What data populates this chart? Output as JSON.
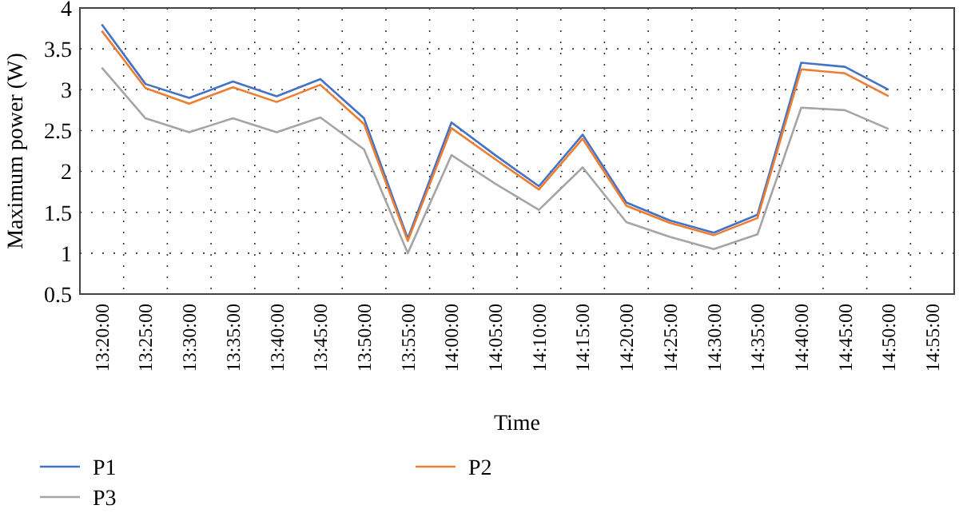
{
  "chart_data": {
    "type": "line",
    "xlabel": "Time",
    "ylabel": "Maximum power (W)",
    "categories": [
      "13:20:00",
      "13:25:00",
      "13:30:00",
      "13:35:00",
      "13:40:00",
      "13:45:00",
      "13:50:00",
      "13:55:00",
      "14:00:00",
      "14:05:00",
      "14:10:00",
      "14:15:00",
      "14:20:00",
      "14:25:00",
      "14:30:00",
      "14:35:00",
      "14:40:00",
      "14:45:00",
      "14:50:00",
      "14:55:00"
    ],
    "series": [
      {
        "name": "P1",
        "color": "#4472c4",
        "values": [
          3.8,
          3.07,
          2.9,
          3.1,
          2.92,
          3.13,
          2.65,
          1.18,
          2.6,
          2.2,
          1.82,
          2.45,
          1.62,
          1.4,
          1.25,
          1.47,
          3.33,
          3.28,
          3.0,
          null
        ]
      },
      {
        "name": "P2",
        "color": "#ed7d31",
        "values": [
          3.72,
          3.02,
          2.83,
          3.03,
          2.85,
          3.06,
          2.58,
          1.15,
          2.53,
          2.15,
          1.78,
          2.4,
          1.58,
          1.37,
          1.22,
          1.43,
          3.25,
          3.2,
          2.92,
          null
        ]
      },
      {
        "name": "P3",
        "color": "#a5a5a5",
        "values": [
          3.27,
          2.65,
          2.48,
          2.65,
          2.48,
          2.66,
          2.27,
          1.0,
          2.2,
          1.85,
          1.53,
          2.05,
          1.38,
          1.2,
          1.05,
          1.23,
          2.78,
          2.75,
          2.52,
          null
        ]
      }
    ],
    "ylim": [
      0.5,
      4
    ],
    "yticks": [
      0.5,
      1,
      1.5,
      2,
      2.5,
      3,
      3.5,
      4
    ],
    "grid": true,
    "legend": "bottom",
    "marker": "none",
    "line_style": "solid"
  }
}
